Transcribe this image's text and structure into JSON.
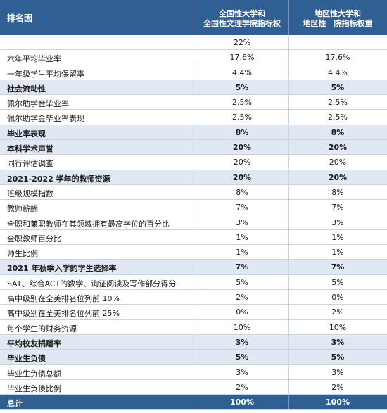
{
  "header": {
    "col0": "排名因",
    "col1_line1": "全国性大学和",
    "col1_line2": "全国性文理学院指标权",
    "col2_line1": "地区性大学和",
    "col2_line2": "地区性　院指标权重"
  },
  "rows": [
    {
      "label": "",
      "v1": "22%",
      "v2": "",
      "type": "normal"
    },
    {
      "label": "六年平均毕业率",
      "v1": "17.6%",
      "v2": "17.6%",
      "type": "normal"
    },
    {
      "label": "一年级学生平均保留率",
      "v1": "4.4%",
      "v2": "4.4%",
      "type": "normal"
    },
    {
      "label": "社会流动性",
      "v1": "5%",
      "v2": "5%",
      "type": "section"
    },
    {
      "label": "佩尔助学金毕业率",
      "v1": "2.5%",
      "v2": "2.5%",
      "type": "normal"
    },
    {
      "label": "佩尔助学金毕业率表现",
      "v1": "2.5%",
      "v2": "2.5%",
      "type": "normal"
    },
    {
      "label": "毕业率表现",
      "v1": "8%",
      "v2": "8%",
      "type": "section"
    },
    {
      "label": "本科学术声誉",
      "v1": "20%",
      "v2": "20%",
      "type": "section"
    },
    {
      "label": "同行评估调查",
      "v1": "20%",
      "v2": "20%",
      "type": "normal"
    },
    {
      "label": "2021-2022 学年的教师资源",
      "v1": "20%",
      "v2": "20%",
      "type": "section"
    },
    {
      "label": "班级规模指数",
      "v1": "8%",
      "v2": "8%",
      "type": "normal"
    },
    {
      "label": "教师薪酬",
      "v1": "7%",
      "v2": "7%",
      "type": "normal"
    },
    {
      "label": "全职和兼职教师在其领域拥有最高学位的百分比",
      "v1": "3%",
      "v2": "3%",
      "type": "normal"
    },
    {
      "label": "全职教师百分比",
      "v1": "1%",
      "v2": "1%",
      "type": "normal"
    },
    {
      "label": "师生比例",
      "v1": "1%",
      "v2": "1%",
      "type": "normal"
    },
    {
      "label": "2021 年秋季入学的学生选择率",
      "v1": "7%",
      "v2": "7%",
      "type": "section"
    },
    {
      "label": "SAT、综合ACT的数学、询证阅读及写作部分得分",
      "v1": "5%",
      "v2": "5%",
      "type": "normal"
    },
    {
      "label": "高中级别在全美排名位列前 10%",
      "v1": "2%",
      "v2": "0%",
      "type": "normal"
    },
    {
      "label": "高中级别在全美排名位列前 25%",
      "v1": "0%",
      "v2": "2%",
      "type": "normal"
    },
    {
      "label": "每个学生的财务资源",
      "v1": "10%",
      "v2": "10%",
      "type": "normal"
    },
    {
      "label": "平均校友捐赠率",
      "v1": "3%",
      "v2": "3%",
      "type": "section"
    },
    {
      "label": "毕业生负债",
      "v1": "5%",
      "v2": "5%",
      "type": "section"
    },
    {
      "label": "毕业生负债总额",
      "v1": "3%",
      "v2": "3%",
      "type": "normal"
    },
    {
      "label": "毕业生负债比例",
      "v1": "2%",
      "v2": "2%",
      "type": "normal"
    },
    {
      "label": "总计",
      "v1": "100%",
      "v2": "100%",
      "type": "total"
    }
  ]
}
